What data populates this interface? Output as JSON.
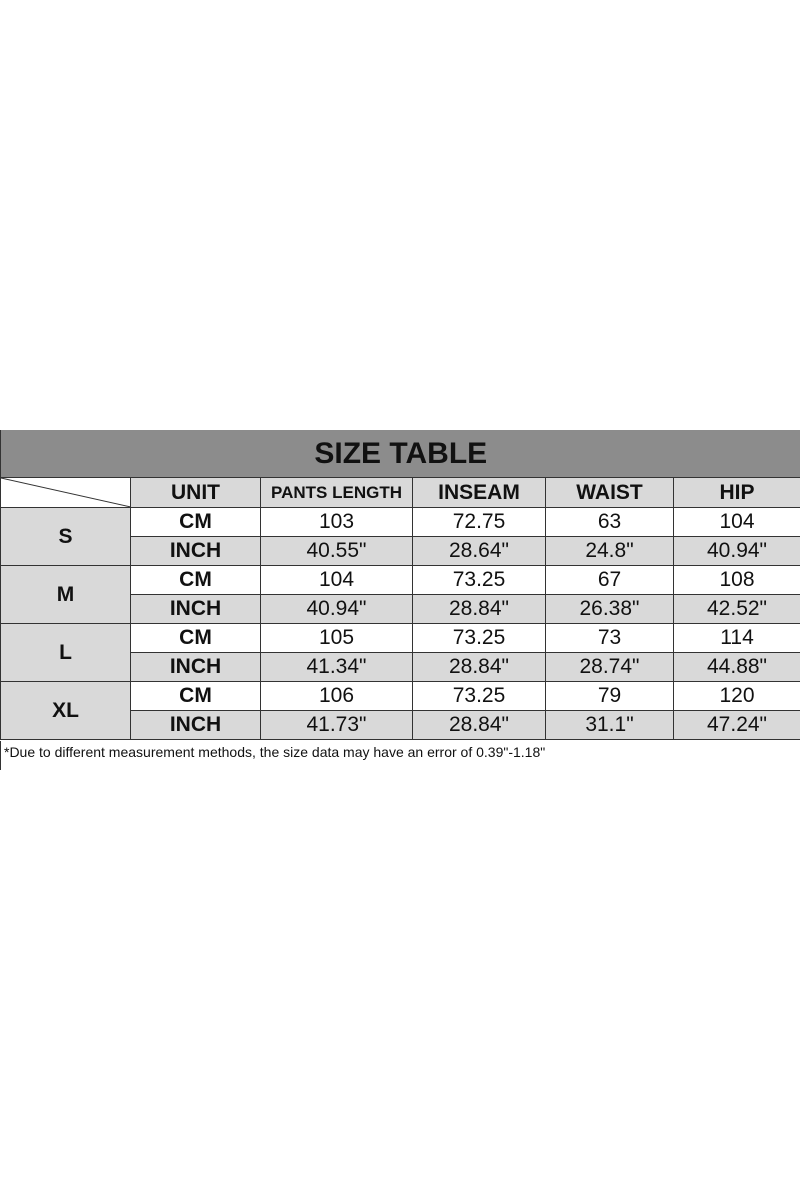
{
  "title": "SIZE TABLE",
  "columns": [
    "UNIT",
    "PANTS LENGTH",
    "INSEAM",
    "WAIST",
    "HIP"
  ],
  "rows": [
    {
      "size": "S",
      "cm": {
        "unit": "CM",
        "values": [
          "103",
          "72.75",
          "63",
          "104"
        ]
      },
      "inch": {
        "unit": "INCH",
        "values": [
          "40.55\"",
          "28.64\"",
          "24.8\"",
          "40.94\""
        ]
      }
    },
    {
      "size": "M",
      "cm": {
        "unit": "CM",
        "values": [
          "104",
          "73.25",
          "67",
          "108"
        ]
      },
      "inch": {
        "unit": "INCH",
        "values": [
          "40.94\"",
          "28.84\"",
          "26.38\"",
          "42.52\""
        ]
      }
    },
    {
      "size": "L",
      "cm": {
        "unit": "CM",
        "values": [
          "105",
          "73.25",
          "73",
          "114"
        ]
      },
      "inch": {
        "unit": "INCH",
        "values": [
          "41.34\"",
          "28.84\"",
          "28.74\"",
          "44.88\""
        ]
      }
    },
    {
      "size": "XL",
      "cm": {
        "unit": "CM",
        "values": [
          "106",
          "73.25",
          "79",
          "120"
        ]
      },
      "inch": {
        "unit": "INCH",
        "values": [
          "41.73\"",
          "28.84\"",
          "31.1\"",
          "47.24\""
        ]
      }
    }
  ],
  "footnote": "*Due to different measurement methods, the size data may have an error of 0.39\"-1.18\""
}
